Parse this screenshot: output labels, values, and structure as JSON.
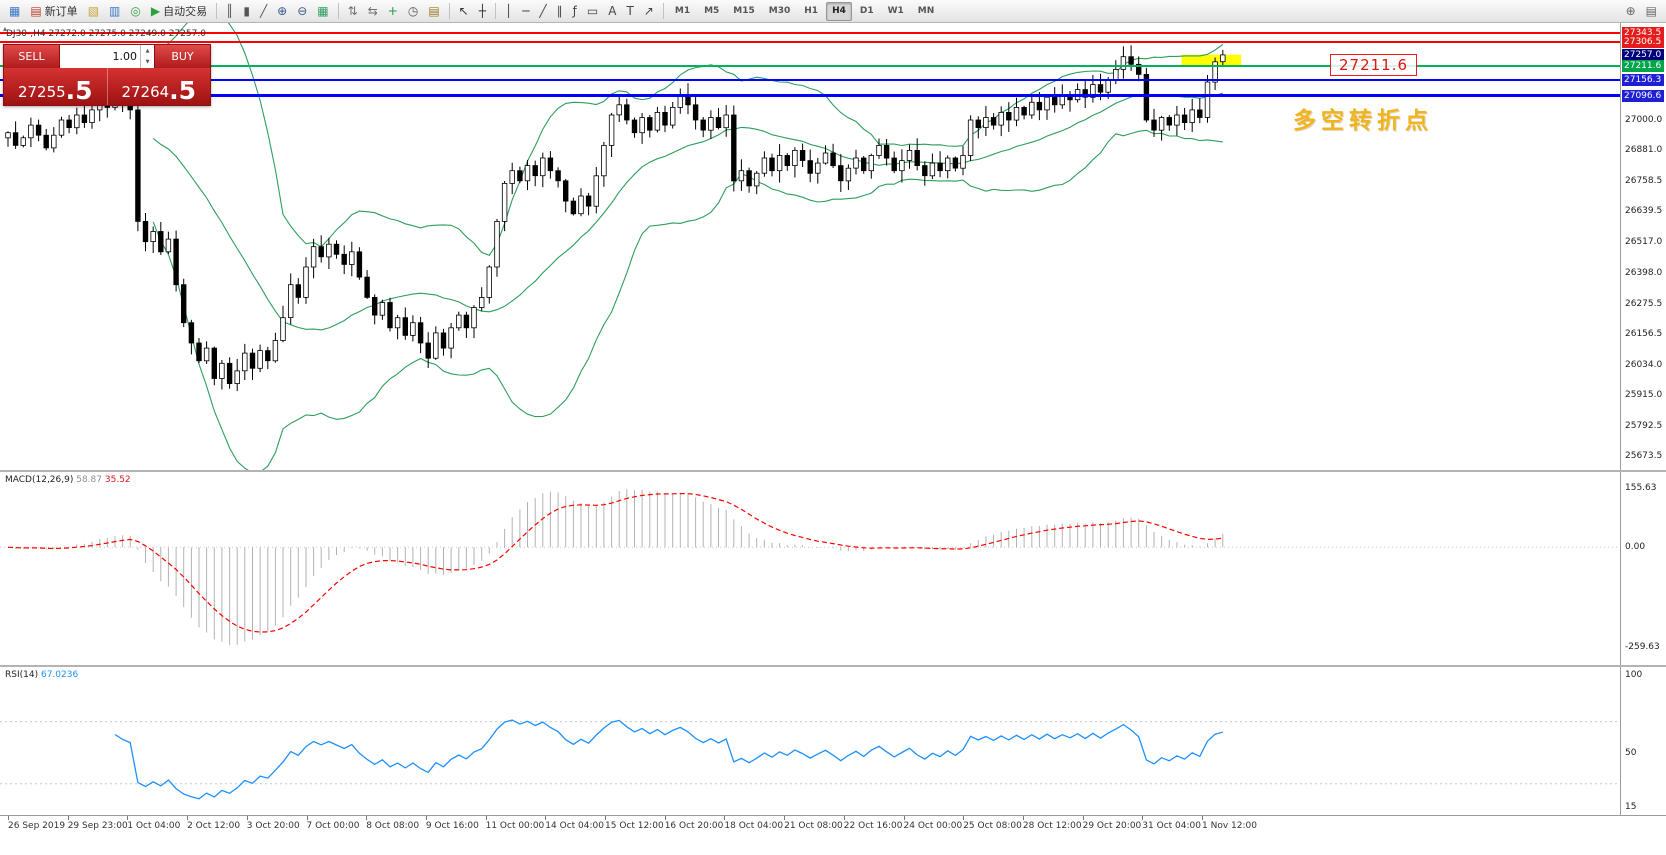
{
  "toolbar": {
    "items": [
      {
        "name": "new-chart",
        "glyph": "▦",
        "color": "#3c78c8"
      },
      {
        "name": "new-order",
        "glyph": "▤",
        "color": "#c03a2a",
        "label": "新订单"
      },
      {
        "name": "chart-profiles",
        "glyph": "▧",
        "color": "#c8a23c"
      },
      {
        "name": "market-watch",
        "glyph": "▥",
        "color": "#3c78c8"
      },
      {
        "name": "navigator",
        "glyph": "◎",
        "color": "#35a046"
      },
      {
        "name": "auto-trading",
        "glyph": "▶",
        "color": "#2ca33a",
        "label": "自动交易"
      },
      {
        "name": "sep"
      },
      {
        "name": "bar-chart-mode",
        "glyph": "║",
        "color": "#555555"
      },
      {
        "name": "candlestick-mode",
        "glyph": "▮",
        "color": "#555555"
      },
      {
        "name": "line-chart-mode",
        "glyph": "╱",
        "color": "#555555"
      },
      {
        "name": "zoom-in",
        "glyph": "⊕",
        "color": "#38588c"
      },
      {
        "name": "zoom-out",
        "glyph": "⊖",
        "color": "#38588c"
      },
      {
        "name": "tile-windows",
        "glyph": "▦",
        "color": "#2f9e60"
      },
      {
        "name": "sep"
      },
      {
        "name": "auto-scroll",
        "glyph": "⇅",
        "color": "#707070"
      },
      {
        "name": "chart-shift",
        "glyph": "⇆",
        "color": "#707070"
      },
      {
        "name": "indicators",
        "glyph": "+",
        "color": "#1f9e3c"
      },
      {
        "name": "periods",
        "glyph": "◷",
        "color": "#555555"
      },
      {
        "name": "templates",
        "glyph": "▤",
        "color": "#9a7b22"
      },
      {
        "name": "sep"
      },
      {
        "name": "cursor",
        "glyph": "↖",
        "color": "#333333"
      },
      {
        "name": "crosshair",
        "glyph": "┼",
        "color": "#333333"
      },
      {
        "name": "sep"
      },
      {
        "name": "vertical-line",
        "glyph": "│",
        "color": "#444444"
      },
      {
        "name": "horizontal-line",
        "glyph": "─",
        "color": "#444444"
      },
      {
        "name": "trendline",
        "glyph": "╱",
        "color": "#444444"
      },
      {
        "name": "equidistant-channel",
        "glyph": "∥",
        "color": "#444444"
      },
      {
        "name": "fibonacci",
        "glyph": "ƒ",
        "color": "#444444"
      },
      {
        "name": "shapes",
        "glyph": "▭",
        "color": "#444444"
      },
      {
        "name": "text",
        "glyph": "A",
        "color": "#444444"
      },
      {
        "name": "text-label",
        "glyph": "T",
        "color": "#444444"
      },
      {
        "name": "arrows",
        "glyph": "↗",
        "color": "#444444"
      },
      {
        "name": "sep"
      }
    ],
    "timeframes": [
      "M1",
      "M5",
      "M15",
      "M30",
      "H1",
      "H4",
      "D1",
      "W1",
      "MN"
    ],
    "active_timeframe": "H4",
    "right_items": [
      {
        "name": "magnifier",
        "glyph": "⊕",
        "color": "#666666"
      },
      {
        "name": "chart-list",
        "glyph": "▤",
        "color": "#666666"
      }
    ]
  },
  "trade_panel": {
    "sell_label": "SELL",
    "buy_label": "BUY",
    "volume": "1.00",
    "sell_price_main": "27255",
    "sell_price_pips": ".5",
    "buy_price_main": "27264",
    "buy_price_pips": ".5"
  },
  "chart": {
    "title": "DJ30-,H4 27272.0 27275.0 27249.0 27257.0",
    "annotation_price": "27211.6",
    "annotation_text": "多空转折点",
    "y_ticks": [
      "27000.0",
      "26881.0",
      "26758.5",
      "26639.5",
      "26517.0",
      "26398.0",
      "26275.5",
      "26156.5",
      "26034.0",
      "25915.0",
      "25792.5",
      "25673.5"
    ],
    "price_tags": [
      {
        "label": "27343.5",
        "price": 27343.5,
        "bg": "#e51c1c",
        "line": "#ff0000",
        "lw": 2
      },
      {
        "label": "27306.5",
        "price": 27306.5,
        "bg": "#e51c1c",
        "line": "#ff0000",
        "lw": 2
      },
      {
        "label": "27257.0",
        "price": 27257.0,
        "bg": "#00007d",
        "line": null,
        "lw": 0
      },
      {
        "label": "27211.6",
        "price": 27211.6,
        "bg": "#00a44a",
        "line": "#00b25a",
        "lw": 2
      },
      {
        "label": "27156.3",
        "price": 27156.3,
        "bg": "#1f1fd4",
        "line": "#0000ff",
        "lw": 2
      },
      {
        "label": "27096.6",
        "price": 27096.6,
        "bg": "#1f1fd4",
        "line": "#0000ff",
        "lw": 3
      }
    ],
    "highlight": {
      "price_top": 27258,
      "price_bottom": 27211.6,
      "x_start_bar": 154,
      "x_end_bar": 161,
      "color": "#ffff00"
    }
  },
  "macd": {
    "name": "MACD(12,26,9)",
    "main": "58.87",
    "signal": "35.52",
    "axis": [
      "155.63",
      "0.00",
      "-259.63"
    ],
    "hist_color": "#b2b2b2",
    "signal_color": "#ff0000"
  },
  "rsi": {
    "name": "RSI(14)",
    "value": "67.0236",
    "axis": [
      "100",
      "50",
      "15"
    ],
    "color": "#1e90ff",
    "levels": [
      30,
      70
    ]
  },
  "time_axis": {
    "labels": [
      "26 Sep 2019",
      "29 Sep 23:00",
      "1 Oct 04:00",
      "2 Oct 12:00",
      "3 Oct 20:00",
      "7 Oct 00:00",
      "8 Oct 08:00",
      "9 Oct 16:00",
      "11 Oct 00:00",
      "14 Oct 04:00",
      "15 Oct 12:00",
      "16 Oct 20:00",
      "18 Oct 04:00",
      "21 Oct 08:00",
      "22 Oct 16:00",
      "24 Oct 00:00",
      "25 Oct 08:00",
      "28 Oct 12:00",
      "29 Oct 20:00",
      "31 Oct 04:00",
      "1 Nov 12:00"
    ]
  },
  "chart_data": {
    "type": "candlestick",
    "symbol": "DJ30",
    "timeframe": "H4",
    "title": "DJ30-,H4",
    "ohlc_current": {
      "open": 27272.0,
      "high": 27275.0,
      "low": 27249.0,
      "close": 27257.0
    },
    "y_range": [
      25617,
      27383
    ],
    "levels": [
      27343.5,
      27306.5,
      27257.0,
      27211.6,
      27156.3,
      27096.6
    ],
    "overlays": {
      "bollinger": {
        "period": 20,
        "deviation": 2,
        "color": "#2e9e5b"
      }
    },
    "indicators": [
      {
        "name": "MACD",
        "params": [
          12,
          26,
          9
        ],
        "current": [
          58.87,
          35.52
        ],
        "scale": [
          -259.63,
          155.63
        ]
      },
      {
        "name": "RSI",
        "params": [
          14
        ],
        "current": 67.0236,
        "scale": [
          15,
          100
        ]
      }
    ],
    "closes": [
      26950,
      26900,
      26930,
      26980,
      26940,
      26890,
      26940,
      27000,
      26970,
      27020,
      26990,
      27040,
      27080,
      27050,
      27090,
      27060,
      27040,
      26600,
      26520,
      26560,
      26480,
      26530,
      26350,
      26200,
      26120,
      26050,
      26100,
      25980,
      26040,
      25960,
      26010,
      26080,
      26020,
      26090,
      26050,
      26130,
      26220,
      26350,
      26300,
      26420,
      26500,
      26460,
      26510,
      26470,
      26430,
      26480,
      26380,
      26300,
      26230,
      26280,
      26180,
      26220,
      26150,
      26200,
      26120,
      26060,
      26160,
      26100,
      26180,
      26230,
      26180,
      26260,
      26300,
      26420,
      26600,
      26750,
      26800,
      26760,
      26820,
      26780,
      26850,
      26800,
      26760,
      26680,
      26630,
      26700,
      26660,
      26780,
      26900,
      27020,
      27060,
      27000,
      26950,
      27010,
      26960,
      27030,
      26980,
      27050,
      27100,
      27060,
      27000,
      26960,
      27010,
      26970,
      27020,
      26760,
      26800,
      26740,
      26790,
      26850,
      26800,
      26860,
      26820,
      26880,
      26840,
      26790,
      26830,
      26870,
      26820,
      26760,
      26810,
      26850,
      26800,
      26860,
      26900,
      26850,
      26800,
      26840,
      26880,
      26820,
      26780,
      26830,
      26800,
      26850,
      26810,
      26860,
      27000,
      26970,
      27010,
      26980,
      27030,
      27000,
      27050,
      27020,
      27070,
      27040,
      27090,
      27060,
      27100,
      27080,
      27120,
      27090,
      27140,
      27110,
      27160,
      27200,
      27250,
      27220,
      27180,
      27000,
      26960,
      27010,
      26980,
      27020,
      26990,
      27040,
      27010,
      27150,
      27230,
      27257
    ]
  }
}
